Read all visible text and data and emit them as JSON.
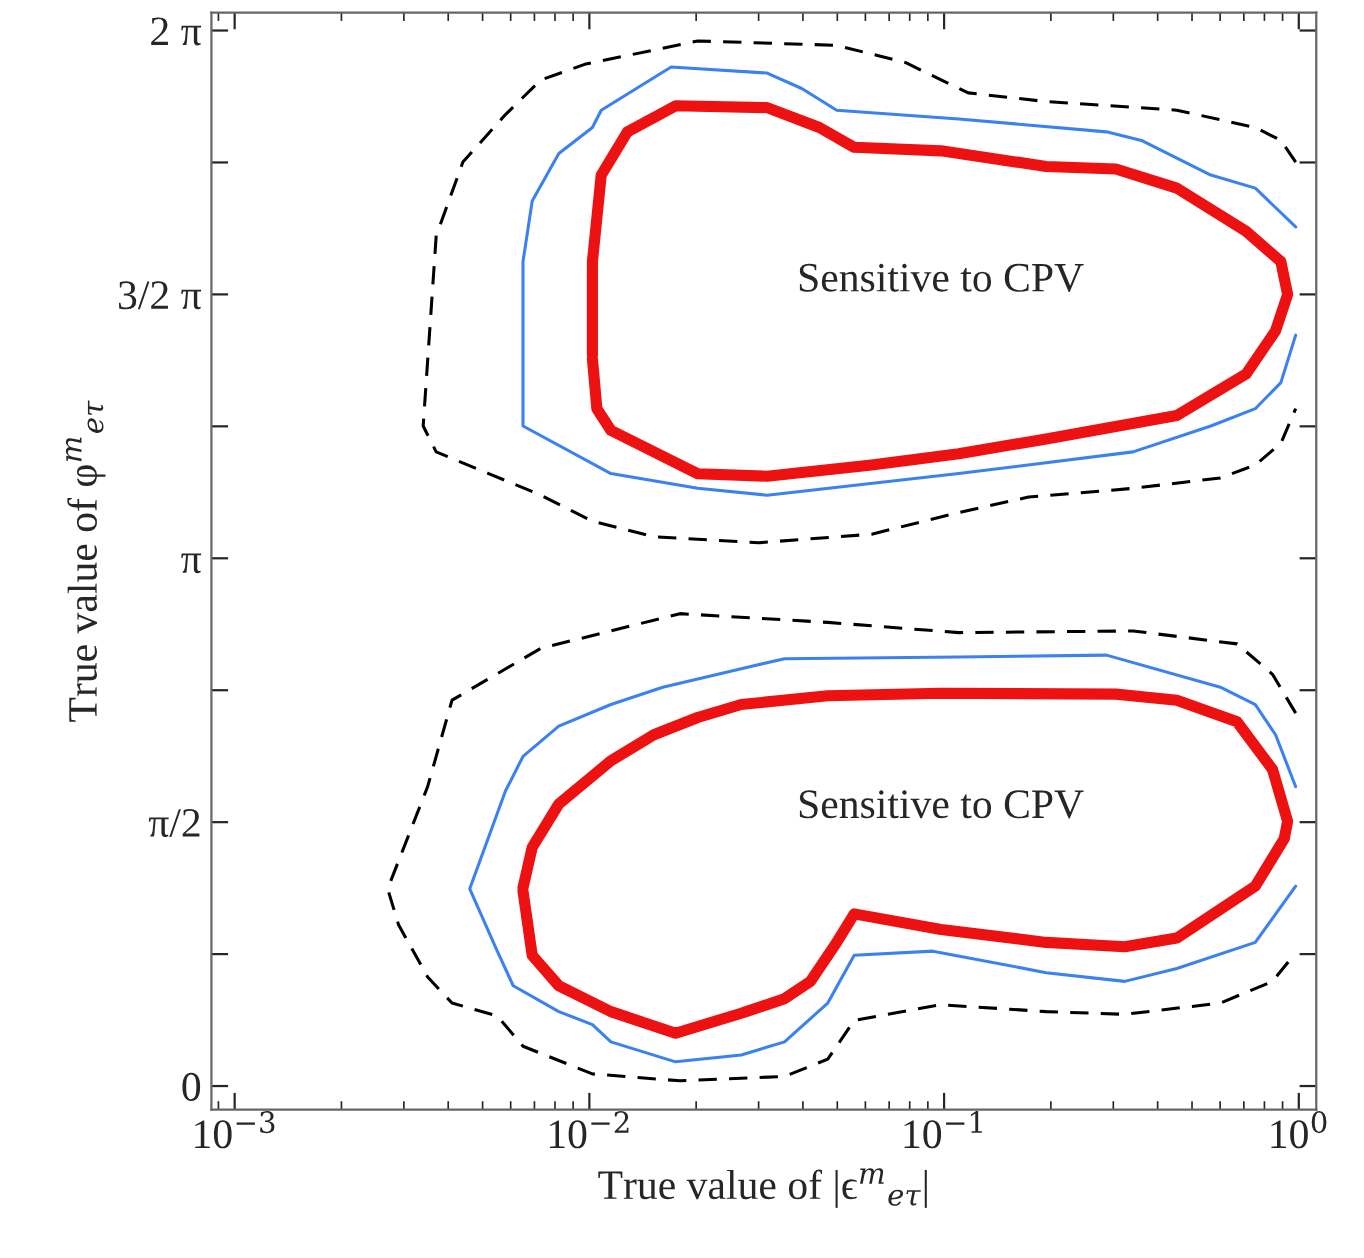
{
  "chart_data": {
    "type": "line",
    "xlabel": "True value of |ϵ$^{m}$$_{eτ}$|",
    "ylabel": "True value of φ$^{m}$$_{eτ}$",
    "log": "x",
    "xlim": [
      0.00086,
      1.12
    ],
    "ylim": [
      -0.14,
      6.39
    ],
    "xticks": [
      {
        "value": 0.001,
        "label": "10$^{−3}$"
      },
      {
        "value": 0.01,
        "label": "10$^{−2}$"
      },
      {
        "value": 0.1,
        "label": "10$^{−1}$"
      },
      {
        "value": 1,
        "label": "10$^{0}$"
      }
    ],
    "yticks": [
      {
        "value": 0,
        "label": "0"
      },
      {
        "value": 0.7854,
        "label": null
      },
      {
        "value": 1.5708,
        "label": "π/2"
      },
      {
        "value": 2.3562,
        "label": null
      },
      {
        "value": 3.1416,
        "label": "π"
      },
      {
        "value": 3.927,
        "label": null
      },
      {
        "value": 4.7124,
        "label": "3/2 π"
      },
      {
        "value": 5.4978,
        "label": null
      },
      {
        "value": 6.2832,
        "label": "2 π"
      }
    ],
    "grid": false,
    "annotations": [
      "Sensitive to CPV",
      "Sensitive to CPV"
    ],
    "series": [
      {
        "color": "#000000",
        "line_style": "dashed",
        "x": [
          0.98,
          0.89,
          0.754,
          0.453,
          0.194,
          0.117,
          0.104,
          0.078,
          0.0498,
          0.0202,
          0.0097,
          0.0073,
          0.0058,
          0.0044,
          0.0037,
          0.0034,
          0.0037,
          0.0052,
          0.0073,
          0.0102,
          0.0152,
          0.03,
          0.0625,
          0.11,
          0.173,
          0.341,
          0.601,
          0.754,
          0.89,
          0.98
        ],
        "values": [
          5.5,
          5.629,
          5.706,
          5.809,
          5.86,
          5.912,
          5.963,
          6.092,
          6.195,
          6.221,
          6.082,
          5.989,
          5.783,
          5.5,
          5.062,
          3.929,
          3.775,
          3.646,
          3.517,
          3.362,
          3.27,
          3.234,
          3.285,
          3.414,
          3.506,
          3.558,
          3.62,
          3.697,
          3.826,
          4.032
        ]
      },
      {
        "color": "#3b82f0",
        "line_style": "solid",
        "x": [
          0.98,
          0.754,
          0.565,
          0.36,
          0.287,
          0.11,
          0.0498,
          0.0397,
          0.0317,
          0.017,
          0.0108,
          0.0102,
          0.0082,
          0.0069,
          0.0065,
          0.0065,
          0.0115,
          0.0202,
          0.0317,
          0.11,
          0.341,
          0.565,
          0.754,
          0.89,
          0.98
        ],
        "values": [
          5.114,
          5.345,
          5.423,
          5.629,
          5.68,
          5.757,
          5.809,
          5.938,
          6.03,
          6.066,
          5.809,
          5.706,
          5.551,
          5.268,
          4.908,
          3.929,
          3.646,
          3.558,
          3.517,
          3.646,
          3.775,
          3.929,
          4.032,
          4.187,
          4.47
        ]
      },
      {
        "color": "#ee1111",
        "line_style": "solid",
        "x": [
          0.0102,
          0.0102,
          0.0108,
          0.0128,
          0.0175,
          0.0317,
          0.0445,
          0.0558,
          0.098,
          0.194,
          0.305,
          0.453,
          0.71,
          0.89,
          0.93,
          0.86,
          0.71,
          0.453,
          0.194,
          0.11,
          0.0625,
          0.0317,
          0.0202,
          0.0115,
          0.0105,
          0.0102
        ],
        "values": [
          4.35,
          4.908,
          5.423,
          5.68,
          5.835,
          5.824,
          5.706,
          5.588,
          5.567,
          5.474,
          5.459,
          5.345,
          5.088,
          4.908,
          4.712,
          4.496,
          4.238,
          3.991,
          3.852,
          3.764,
          3.697,
          3.63,
          3.645,
          3.903,
          4.032,
          4.33
        ]
      },
      {
        "color": "#000000",
        "line_style": "dashed",
        "x": [
          0.98,
          0.843,
          0.67,
          0.341,
          0.11,
          0.047,
          0.018,
          0.0115,
          0.0073,
          0.0041,
          0.0035,
          0.0027,
          0.0029,
          0.0035,
          0.0041,
          0.0055,
          0.0065,
          0.0102,
          0.018,
          0.0355,
          0.047,
          0.0558,
          0.098,
          0.194,
          0.323,
          0.601,
          0.843,
          0.98
        ],
        "values": [
          2.22,
          2.451,
          2.632,
          2.709,
          2.699,
          2.76,
          2.812,
          2.709,
          2.606,
          2.297,
          1.782,
          1.174,
          0.958,
          0.649,
          0.494,
          0.417,
          0.237,
          0.072,
          0.031,
          0.057,
          0.16,
          0.391,
          0.484,
          0.443,
          0.427,
          0.494,
          0.623,
          0.793
        ]
      },
      {
        "color": "#3b82f0",
        "line_style": "solid",
        "x": [
          0.98,
          0.86,
          0.754,
          0.601,
          0.287,
          0.11,
          0.0355,
          0.0259,
          0.0161,
          0.0115,
          0.0082,
          0.0065,
          0.0058,
          0.0046,
          0.0055,
          0.0061,
          0.0082,
          0.0102,
          0.0115,
          0.0175,
          0.0268,
          0.0355,
          0.047,
          0.0558,
          0.093,
          0.194,
          0.323,
          0.453,
          0.754,
          0.98
        ],
        "values": [
          1.782,
          2.091,
          2.271,
          2.374,
          2.565,
          2.554,
          2.544,
          2.477,
          2.374,
          2.271,
          2.142,
          1.962,
          1.756,
          1.174,
          0.803,
          0.597,
          0.443,
          0.366,
          0.263,
          0.144,
          0.185,
          0.263,
          0.494,
          0.778,
          0.803,
          0.675,
          0.623,
          0.7,
          0.855,
          1.19
        ]
      },
      {
        "color": "#ee1111",
        "line_style": "solid",
        "x": [
          0.0065,
          0.0069,
          0.0082,
          0.0115,
          0.0175,
          0.0268,
          0.0355,
          0.042,
          0.0498,
          0.0558,
          0.098,
          0.194,
          0.323,
          0.453,
          0.754,
          0.91,
          0.93,
          0.843,
          0.67,
          0.453,
          0.305,
          0.098,
          0.047,
          0.0268,
          0.0202,
          0.0152,
          0.0115,
          0.0082,
          0.0069,
          0.0065
        ],
        "values": [
          1.16,
          0.778,
          0.597,
          0.443,
          0.314,
          0.433,
          0.52,
          0.623,
          0.855,
          1.025,
          0.932,
          0.855,
          0.829,
          0.881,
          1.19,
          1.473,
          1.576,
          1.885,
          2.168,
          2.297,
          2.333,
          2.338,
          2.323,
          2.271,
          2.194,
          2.091,
          1.936,
          1.679,
          1.421,
          1.18
        ]
      }
    ]
  }
}
